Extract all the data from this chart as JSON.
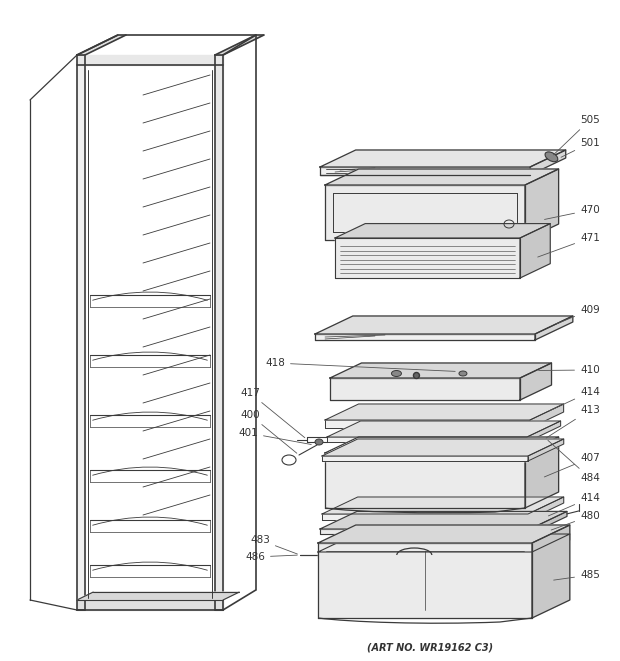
{
  "art_no": "(ART NO. WR19162 C3)",
  "bg_color": "#ffffff",
  "lc": "#3a3a3a",
  "figsize": [
    6.2,
    6.61
  ],
  "dpi": 100,
  "skx": 0.45,
  "sky": 0.22
}
